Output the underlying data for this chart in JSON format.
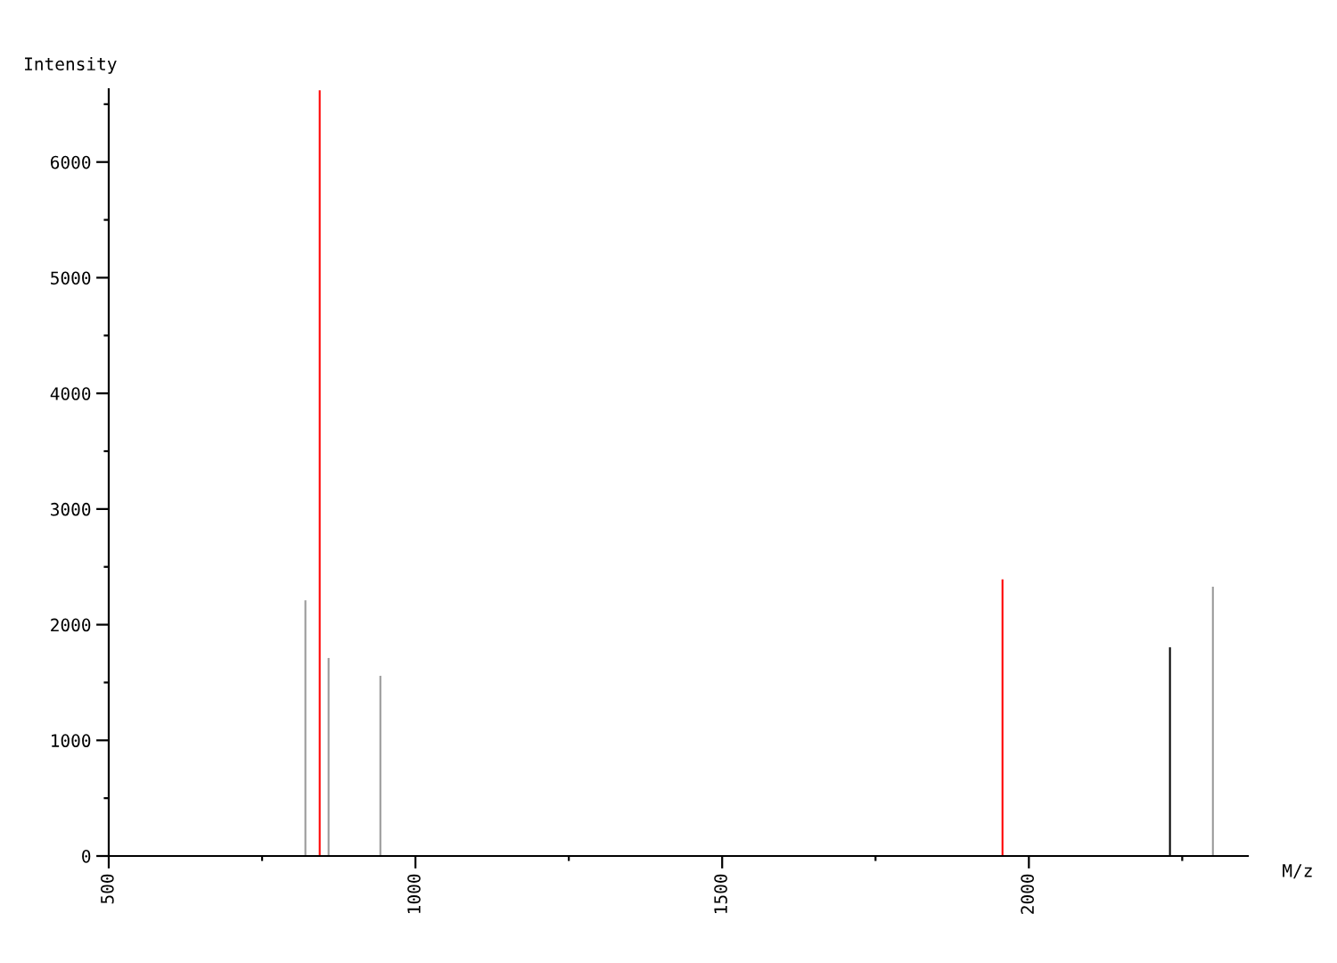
{
  "chart_data": {
    "type": "bar",
    "xlabel": "M/z",
    "ylabel": "Intensity",
    "x": [
      820.6,
      843.9,
      858.4,
      942.8,
      1957,
      2230,
      2300
    ],
    "values": [
      2210,
      6620,
      1712,
      1558,
      2391,
      1805,
      2329
    ],
    "colors": [
      "#999999",
      "#ff0000",
      "#999999",
      "#999999",
      "#ff0000",
      "#000000",
      "#999999"
    ],
    "xlim": [
      500,
      2357
    ],
    "xticks": [
      500,
      {
        "value": 750,
        "label": null
      },
      1000,
      {
        "value": 1250,
        "label": null
      },
      1500,
      {
        "value": 1750,
        "label": null
      },
      2000,
      {
        "value": 2250,
        "label": null
      }
    ],
    "ylim": [
      0,
      6630
    ],
    "yticks": [
      0,
      {
        "value": 500,
        "label": null
      },
      1000,
      {
        "value": 1500,
        "label": null
      },
      2000,
      {
        "value": 2500,
        "label": null
      },
      3000,
      {
        "value": 3500,
        "label": null
      },
      4000,
      {
        "value": 4500,
        "label": null
      },
      5000,
      {
        "value": 5500,
        "label": null
      },
      6000,
      {
        "value": 6500,
        "label": null
      }
    ],
    "grid": false,
    "legend": false
  }
}
